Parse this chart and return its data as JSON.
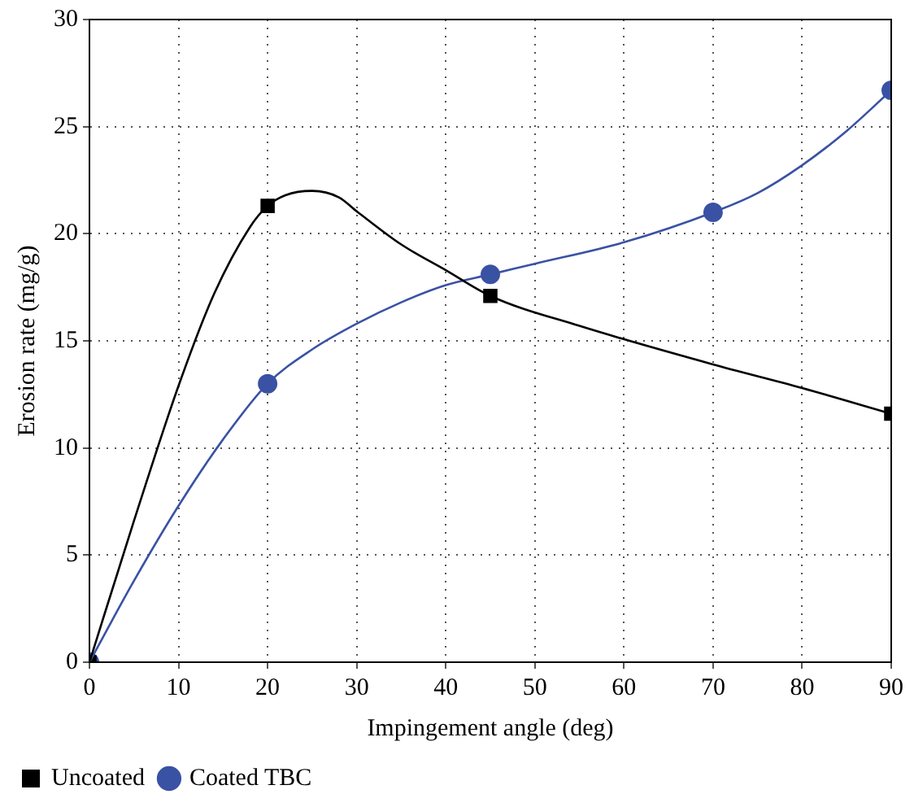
{
  "chart_data": {
    "type": "scatter",
    "xlabel": "Impingement angle (deg)",
    "ylabel": "Erosion rate (mg/g)",
    "xlim": [
      0,
      90
    ],
    "xticks": [
      0,
      10,
      20,
      30,
      40,
      50,
      60,
      70,
      80,
      90
    ],
    "ylim": [
      0,
      30
    ],
    "yticks": [
      0,
      5,
      10,
      15,
      20,
      25,
      30
    ],
    "grid": true,
    "legend": "bottom",
    "series": [
      {
        "type": "line",
        "color": "#000000",
        "marker": "none",
        "x": [
          0,
          5,
          10,
          14,
          18,
          20,
          22,
          25,
          28,
          30,
          35,
          40,
          45,
          55,
          70,
          80,
          90
        ],
        "values": [
          0,
          6.6,
          12.9,
          17.2,
          20.3,
          21.3,
          21.8,
          22.0,
          21.7,
          21.05,
          19.5,
          18.3,
          17.1,
          15.7,
          13.9,
          12.8,
          11.6
        ]
      },
      {
        "type": "line",
        "color": "#3a52a4",
        "marker": "none",
        "x": [
          0,
          5,
          10,
          15,
          20,
          25,
          30,
          35,
          40,
          45,
          50,
          60,
          70,
          75,
          80,
          85,
          90
        ],
        "values": [
          0,
          3.8,
          7.3,
          10.4,
          13,
          14.6,
          15.8,
          16.8,
          17.6,
          18.1,
          18.6,
          19.6,
          21,
          21.9,
          23.2,
          24.8,
          26.7
        ]
      },
      {
        "name": "Uncoated",
        "color": "#000000",
        "marker": "square",
        "x": [
          0,
          20,
          45,
          90
        ],
        "values": [
          0,
          21.3,
          17.1,
          11.6
        ]
      },
      {
        "name": "Coated TBC",
        "color": "#3a52a4",
        "marker": "circle",
        "x": [
          0,
          20,
          45,
          70,
          90
        ],
        "values": [
          0,
          13,
          18.1,
          21,
          26.7
        ]
      }
    ]
  }
}
